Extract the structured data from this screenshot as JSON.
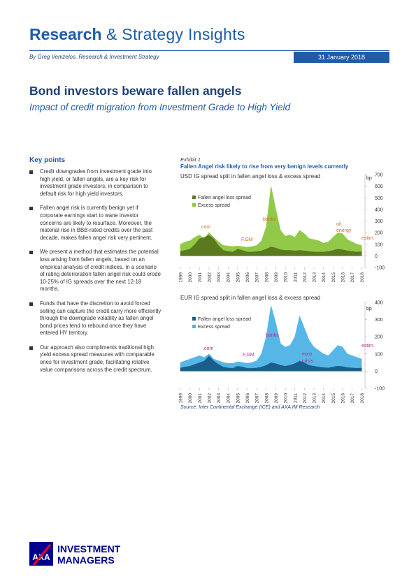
{
  "header": {
    "title_bold": "Research",
    "title_rest": "& Strategy Insights",
    "byline": "By Greg Venizelos, Research & Investment Strategy",
    "date": "31 January 2018"
  },
  "title": "Bond investors beware fallen angels",
  "subtitle": "Impact of credit migration from Investment Grade to High Yield",
  "key_points": {
    "heading": "Key points",
    "items": [
      "Credit downgrades from investment grade into high yield, or fallen angels, are a key risk for investment grade investors; in comparison to default risk for high yield investors.",
      "Fallen angel risk is currently benign yet if corporate earnings start to wane investor concerns are likely to resurface. Moreover, the material rise in BBB-rated credits over the past decade, makes fallen angel risk very pertinent.",
      "We present a method that estimates the potential loss arising from fallen angels, based on an empirical analysis of credit indices. In a scenario of rating deterioration fallen angel risk could erode 10-25% of IG spreads over the next 12-18 months.",
      "Funds that have the discretion to avoid forced selling can capture the credit carry more efficiently through the downgrade volatility as fallen angel bond prices tend to rebound once they have entered HY territory.",
      "Our approach also compliments traditional high yield excess spread measures with comparable ones for investment grade, facilitating relative value comparisons across the credit spectrum."
    ]
  },
  "exhibit": {
    "label": "Exhibit 1",
    "title": "Fallen Angel risk likely to rise from very benign levels currently",
    "source": "Source: Inter Continental Exchange (ICE) and AXA IM Research"
  },
  "chart_data": [
    {
      "type": "area",
      "stacked": true,
      "title": "USD IG spread split in fallen angel loss & excess spread",
      "ylabel": "bp",
      "x": [
        1999,
        1999.5,
        2000,
        2000.5,
        2001,
        2001.5,
        2002,
        2002.5,
        2003,
        2003.5,
        2004,
        2004.5,
        2005,
        2005.5,
        2006,
        2006.5,
        2007,
        2007.5,
        2008,
        2008.5,
        2009,
        2009.5,
        2010,
        2010.5,
        2011,
        2011.5,
        2012,
        2012.5,
        2013,
        2013.5,
        2014,
        2014.5,
        2015,
        2015.5,
        2016,
        2016.5,
        2017,
        2017.5,
        2018
      ],
      "xlim": [
        1999,
        2018.2
      ],
      "xticks": [
        1999,
        2000,
        2001,
        2002,
        2003,
        2004,
        2005,
        2006,
        2007,
        2008,
        2009,
        2010,
        2011,
        2012,
        2013,
        2014,
        2015,
        2016,
        2017,
        2018
      ],
      "ylim": [
        -100,
        700
      ],
      "yticks": [
        -100,
        0,
        100,
        200,
        300,
        400,
        500,
        600,
        700
      ],
      "series": [
        {
          "name": "Fallen angel loss spread",
          "color": "#5b7a1f",
          "values": [
            40,
            50,
            60,
            100,
            150,
            160,
            180,
            150,
            90,
            50,
            40,
            35,
            60,
            50,
            35,
            35,
            40,
            45,
            60,
            80,
            70,
            55,
            50,
            50,
            45,
            50,
            45,
            40,
            35,
            35,
            35,
            40,
            50,
            60,
            55,
            45,
            40,
            35,
            40
          ]
        },
        {
          "name": "Excess spread",
          "color": "#8dc63f",
          "values": [
            60,
            70,
            70,
            60,
            30,
            -10,
            20,
            10,
            30,
            40,
            45,
            45,
            25,
            30,
            40,
            45,
            50,
            85,
            190,
            520,
            330,
            165,
            120,
            130,
            115,
            170,
            145,
            110,
            105,
            95,
            75,
            80,
            110,
            140,
            135,
            95,
            80,
            65,
            50
          ]
        }
      ],
      "annotation_color": "#c8701e",
      "annotations": [
        ".com",
        "F,GM",
        "banks",
        "oil,",
        "energy",
        "estim."
      ]
    },
    {
      "type": "area",
      "stacked": true,
      "title": "EUR IG spread split in fallen angel loss & excess spread",
      "ylabel": "bp",
      "x": [
        1999,
        1999.5,
        2000,
        2000.5,
        2001,
        2001.5,
        2002,
        2002.5,
        2003,
        2003.5,
        2004,
        2004.5,
        2005,
        2005.5,
        2006,
        2006.5,
        2007,
        2007.5,
        2008,
        2008.5,
        2009,
        2009.5,
        2010,
        2010.5,
        2011,
        2011.5,
        2012,
        2012.5,
        2013,
        2013.5,
        2014,
        2014.5,
        2015,
        2015.5,
        2016,
        2016.5,
        2017,
        2017.5,
        2018
      ],
      "xlim": [
        1999,
        2018.2
      ],
      "xticks": [
        1999,
        2000,
        2001,
        2002,
        2003,
        2004,
        2005,
        2006,
        2007,
        2008,
        2009,
        2010,
        2011,
        2012,
        2013,
        2014,
        2015,
        2016,
        2017,
        2018
      ],
      "ylim": [
        -100,
        400
      ],
      "yticks": [
        -100,
        0,
        100,
        200,
        300,
        400
      ],
      "series": [
        {
          "name": "Fallen angel loss spread",
          "color": "#1b5d8c",
          "values": [
            20,
            25,
            30,
            40,
            50,
            60,
            90,
            60,
            40,
            25,
            20,
            18,
            30,
            25,
            18,
            18,
            20,
            25,
            35,
            50,
            45,
            35,
            30,
            35,
            45,
            60,
            50,
            35,
            30,
            25,
            22,
            20,
            25,
            30,
            28,
            22,
            20,
            18,
            20
          ]
        },
        {
          "name": "Excess spread",
          "color": "#4db3e6",
          "values": [
            30,
            35,
            40,
            40,
            40,
            20,
            10,
            10,
            20,
            25,
            25,
            27,
            25,
            25,
            27,
            32,
            40,
            75,
            165,
            330,
            235,
            125,
            110,
            115,
            155,
            260,
            200,
            145,
            110,
            95,
            78,
            70,
            95,
            120,
            112,
            78,
            70,
            62,
            50
          ]
        }
      ],
      "annotation_color": "#b03088",
      "annotations": [
        ".com",
        "F,GM",
        "banks",
        "euro",
        "crisis",
        "estim."
      ]
    }
  ],
  "footer": {
    "logo_mark": "AXA",
    "logo_line1": "INVESTMENT",
    "logo_line2": "MANAGERS"
  }
}
